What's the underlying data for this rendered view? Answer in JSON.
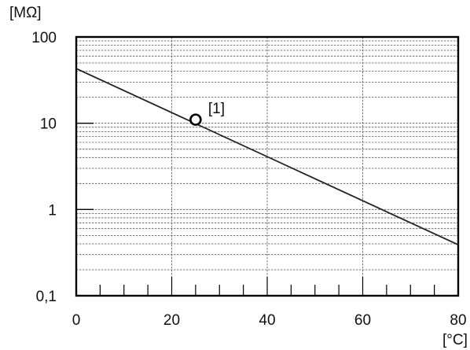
{
  "chart_data": {
    "type": "line",
    "y_scale": "log",
    "y_unit": "[MΩ]",
    "x_unit": "[°C]",
    "xlim": [
      0,
      80
    ],
    "ylim": [
      0.1,
      100
    ],
    "x_ticks": [
      {
        "value": 0,
        "label": "0"
      },
      {
        "value": 20,
        "label": "20"
      },
      {
        "value": 40,
        "label": "40"
      },
      {
        "value": 60,
        "label": "60"
      },
      {
        "value": 80,
        "label": "80"
      }
    ],
    "y_ticks": [
      {
        "value": 0.1,
        "label": "0,1"
      },
      {
        "value": 1,
        "label": "1"
      },
      {
        "value": 10,
        "label": "10"
      },
      {
        "value": 100,
        "label": "100"
      }
    ],
    "grid": true,
    "series": [
      {
        "x": [
          0,
          80
        ],
        "y": [
          43,
          0.39
        ]
      }
    ],
    "annotations": [
      {
        "label": "[1]",
        "x": 25,
        "y": 11
      }
    ],
    "colors": {
      "line": "#222222",
      "grid": "#555555",
      "axes": "#000000"
    }
  }
}
